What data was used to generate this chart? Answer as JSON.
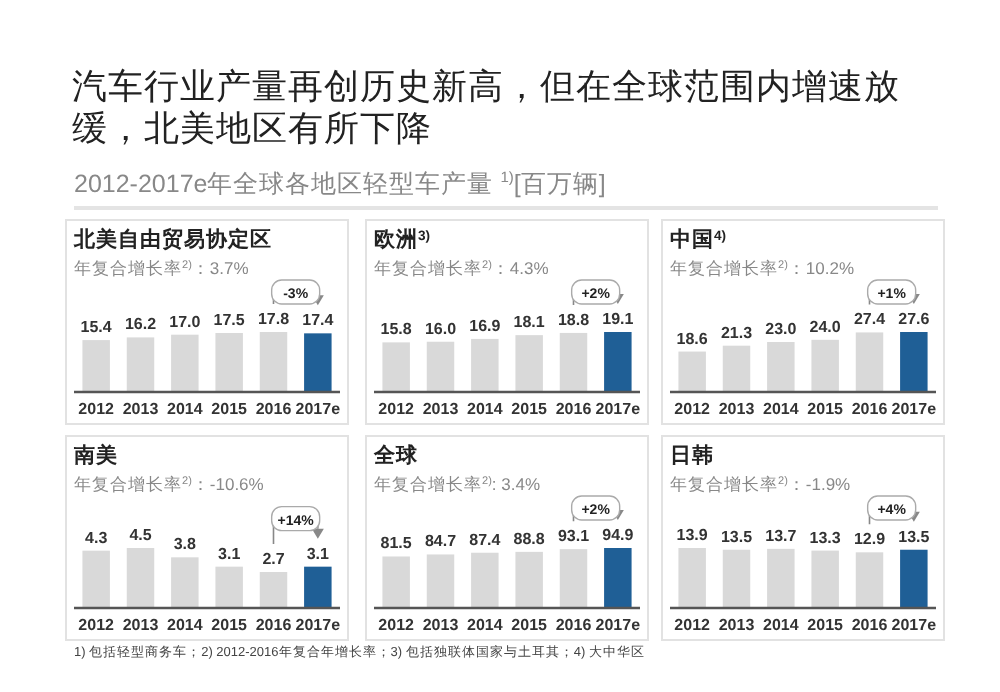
{
  "chart_data": [
    {
      "type": "bar",
      "title": "北美自由贸易协定区",
      "subtitle": "年复合增长率$^{2)}$：3.7%",
      "categories": [
        "2012",
        "2013",
        "2014",
        "2015",
        "2016",
        "2017e"
      ],
      "values": [
        15.4,
        16.2,
        17.0,
        17.5,
        17.8,
        17.4
      ],
      "value_labels": [
        "15.4",
        "16.2",
        "17.0",
        "17.5",
        "17.8",
        "17.4"
      ],
      "colors": [
        "#d9d9d9",
        "#d9d9d9",
        "#d9d9d9",
        "#d9d9d9",
        "#d9d9d9",
        "#1f5f96"
      ],
      "annotations": [
        "汽车行业产量再创历史新高，但在全球范围内增速放缓，北美地区有所下降",
        "2012-2017e年全球各地区轻型车产量 $^{1)}$[百万辆]",
        "-3%"
      ]
    },
    {
      "type": "bar",
      "title": "欧洲$^{3)}$",
      "subtitle": "年复合增长率$^{2)}$：4.3%",
      "categories": [
        "2012",
        "2013",
        "2014",
        "2015",
        "2016",
        "2017e"
      ],
      "values": [
        15.8,
        16.0,
        16.9,
        18.1,
        18.8,
        19.1
      ],
      "value_labels": [
        "15.8",
        "16.0",
        "16.9",
        "18.1",
        "18.8",
        "19.1"
      ],
      "colors": [
        "#d9d9d9",
        "#d9d9d9",
        "#d9d9d9",
        "#d9d9d9",
        "#d9d9d9",
        "#1f5f96"
      ],
      "annotations": [
        "+2%"
      ]
    },
    {
      "type": "bar",
      "title": "中国$^{4)}$",
      "subtitle": "年复合增长率$^{2)}$：10.2%",
      "categories": [
        "2012",
        "2013",
        "2014",
        "2015",
        "2016",
        "2017e"
      ],
      "values": [
        18.6,
        21.3,
        23.0,
        24.0,
        27.4,
        27.6
      ],
      "value_labels": [
        "18.6",
        "21.3",
        "23.0",
        "24.0",
        "27.4",
        "27.6"
      ],
      "colors": [
        "#d9d9d9",
        "#d9d9d9",
        "#d9d9d9",
        "#d9d9d9",
        "#d9d9d9",
        "#1f5f96"
      ],
      "annotations": [
        "+1%"
      ]
    },
    {
      "type": "bar",
      "title": "南美",
      "subtitle": "年复合增长率$^{2)}$：-10.6%",
      "categories": [
        "2012",
        "2013",
        "2014",
        "2015",
        "2016",
        "2017e"
      ],
      "values": [
        4.3,
        4.5,
        3.8,
        3.1,
        2.7,
        3.1
      ],
      "value_labels": [
        "4.3",
        "4.5",
        "3.8",
        "3.1",
        "2.7",
        "3.1"
      ],
      "colors": [
        "#d9d9d9",
        "#d9d9d9",
        "#d9d9d9",
        "#d9d9d9",
        "#d9d9d9",
        "#1f5f96"
      ],
      "annotations": [
        "+14%"
      ]
    },
    {
      "type": "bar",
      "title": "全球",
      "subtitle": "年复合增长率$^{2)}$: 3.4%",
      "categories": [
        "2012",
        "2013",
        "2014",
        "2015",
        "2016",
        "2017e"
      ],
      "values": [
        81.5,
        84.7,
        87.4,
        88.8,
        93.1,
        94.9
      ],
      "value_labels": [
        "81.5",
        "84.7",
        "87.4",
        "88.8",
        "93.1",
        "94.9"
      ],
      "colors": [
        "#d9d9d9",
        "#d9d9d9",
        "#d9d9d9",
        "#d9d9d9",
        "#d9d9d9",
        "#1f5f96"
      ],
      "annotations": [
        "+2%"
      ]
    },
    {
      "type": "bar",
      "title": "日韩",
      "subtitle": "年复合增长率$^{2)}$：-1.9%",
      "categories": [
        "2012",
        "2013",
        "2014",
        "2015",
        "2016",
        "2017e"
      ],
      "values": [
        13.9,
        13.5,
        13.7,
        13.3,
        12.9,
        13.5
      ],
      "value_labels": [
        "13.9",
        "13.5",
        "13.7",
        "13.3",
        "12.9",
        "13.5"
      ],
      "colors": [
        "#d9d9d9",
        "#d9d9d9",
        "#d9d9d9",
        "#d9d9d9",
        "#d9d9d9",
        "#1f5f96"
      ],
      "annotations": [
        "+4%",
        "1) 包括轻型商务车；2) 2012-2016年复合年增长率；3) 包括独联体国家与土耳其；4) 大中华区"
      ]
    }
  ]
}
